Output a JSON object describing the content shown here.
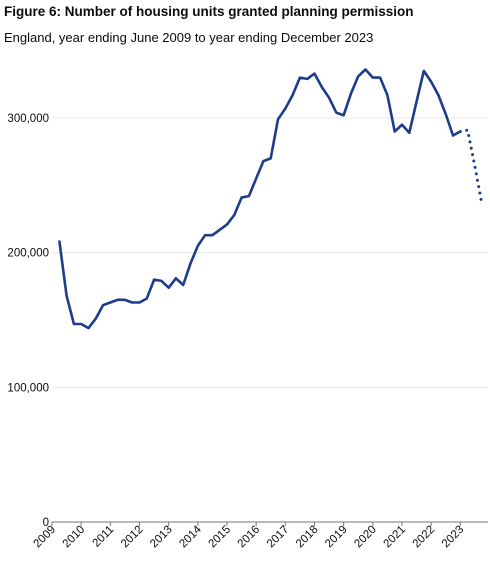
{
  "chart_data": {
    "type": "line",
    "title": "Figure 6: Number of housing units granted planning permission",
    "subtitle": "England,  year ending June 2009 to year ending December 2023",
    "xlabel": "",
    "ylabel": "",
    "ylim": [
      0,
      340000
    ],
    "yticks": [
      0,
      100000,
      200000,
      300000
    ],
    "ytick_labels": [
      "0",
      "100,000",
      "200,000",
      "300,000"
    ],
    "xticks": [
      "2009",
      "2010",
      "2011",
      "2012",
      "2013",
      "2014",
      "2015",
      "2016",
      "2017",
      "2018",
      "2019",
      "2020",
      "2021",
      "2022",
      "2023"
    ],
    "grid": true,
    "colors": {
      "line": "#1d3c8a",
      "grid": "#e8e8e8",
      "axis": "#777777"
    },
    "series": [
      {
        "style": "solid",
        "x": [
          "2009 Q2",
          "2009 Q3",
          "2009 Q4",
          "2010 Q1",
          "2010 Q2",
          "2010 Q3",
          "2010 Q4",
          "2011 Q1",
          "2011 Q2",
          "2011 Q3",
          "2011 Q4",
          "2012 Q1",
          "2012 Q2",
          "2012 Q3",
          "2012 Q4",
          "2013 Q1",
          "2013 Q2",
          "2013 Q3",
          "2013 Q4",
          "2014 Q1",
          "2014 Q2",
          "2014 Q3",
          "2014 Q4",
          "2015 Q1",
          "2015 Q2",
          "2015 Q3",
          "2015 Q4",
          "2016 Q1",
          "2016 Q2",
          "2016 Q3",
          "2016 Q4",
          "2017 Q1",
          "2017 Q2",
          "2017 Q3",
          "2017 Q4",
          "2018 Q1",
          "2018 Q2",
          "2018 Q3",
          "2018 Q4",
          "2019 Q1",
          "2019 Q2",
          "2019 Q3",
          "2019 Q4",
          "2020 Q1",
          "2020 Q2",
          "2020 Q3",
          "2020 Q4",
          "2021 Q1",
          "2021 Q2",
          "2021 Q3",
          "2021 Q4",
          "2022 Q1",
          "2022 Q2",
          "2022 Q3",
          "2022 Q4",
          "2023 Q1"
        ],
        "values": [
          209000,
          168000,
          147000,
          147000,
          144000,
          151000,
          161000,
          163000,
          165000,
          165000,
          163000,
          163000,
          166000,
          180000,
          179000,
          174000,
          181000,
          176000,
          192000,
          205000,
          213000,
          213000,
          217000,
          221000,
          228000,
          241000,
          242000,
          255000,
          268000,
          270000,
          299000,
          307000,
          317000,
          330000,
          329000,
          333000,
          323000,
          315000,
          304000,
          302000,
          318000,
          331000,
          336000,
          330000,
          330000,
          317000,
          290000,
          295000,
          289000,
          312000,
          335000,
          327000,
          317000,
          303000,
          287000,
          290000
        ]
      },
      {
        "style": "dotted",
        "x": [
          "2023 Q1",
          "2023 Q2",
          "2023 Q3",
          "2023 Q4"
        ],
        "values": [
          290000,
          291000,
          264000,
          235000
        ]
      }
    ]
  }
}
